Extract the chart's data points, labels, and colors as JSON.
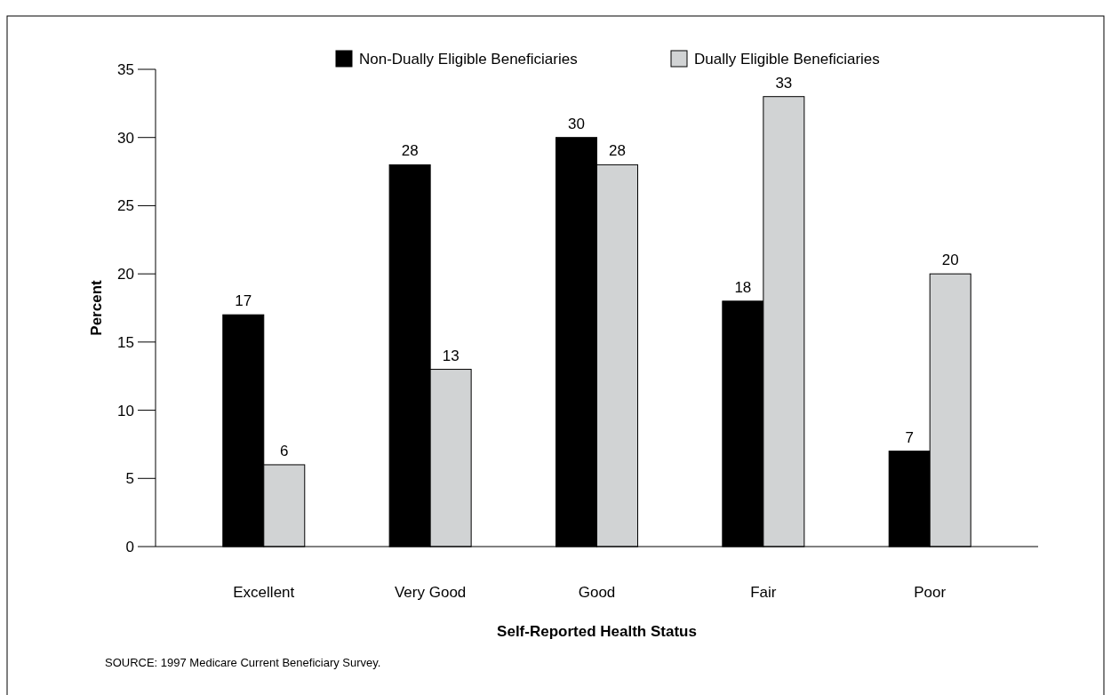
{
  "chart_data": {
    "type": "bar",
    "xlabel": "Self-Reported Health Status",
    "ylabel": "Percent",
    "categories": [
      "Excellent",
      "Very Good",
      "Good",
      "Fair",
      "Poor"
    ],
    "series": [
      {
        "name": "Non-Dually Eligible Beneficiaries",
        "color": "#000000",
        "values": [
          17,
          28,
          30,
          18,
          7
        ]
      },
      {
        "name": "Dually Eligible Beneficiaries",
        "color": "#d1d3d4",
        "values": [
          6,
          13,
          28,
          33,
          20
        ]
      }
    ],
    "ylim": [
      0,
      35
    ],
    "yticks": [
      0,
      5,
      10,
      15,
      20,
      25,
      30,
      35
    ],
    "data_labels": true,
    "legend": "top",
    "grid": false,
    "annotations": [
      "SOURCE:  1997 Medicare Current Beneficiary Survey."
    ]
  }
}
